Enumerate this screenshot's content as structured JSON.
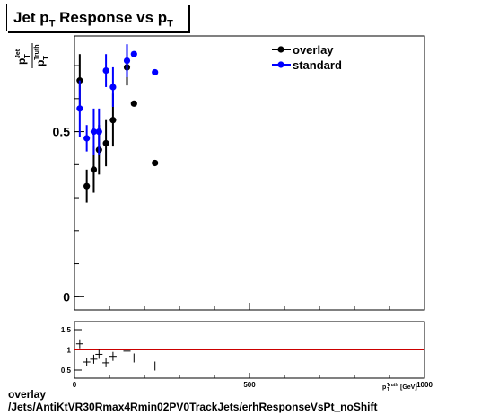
{
  "title": {
    "main": "Jet p",
    "sub1": "T",
    "mid": " Response vs p",
    "sub2": "T"
  },
  "caption": {
    "line1": "overlay",
    "line2": "/Jets/AntiKtVR30Rmax4Rmin02PV0TrackJets/erhResponseVsPt_noShift"
  },
  "colors": {
    "overlay": "#000000",
    "standard": "#0000ff",
    "ratio_line": "#cc0000"
  },
  "chart_data": [
    {
      "type": "scatter",
      "ylabel": {
        "num": "p",
        "num_sub": "T",
        "num_sup": "Jet",
        "den": "p",
        "den_sub": "T",
        "den_sup": "Truth"
      },
      "xlim": [
        0,
        1000
      ],
      "ylim": [
        -0.04,
        0.79
      ],
      "y_ticks": [
        0,
        0.5
      ],
      "y_tick_labels": [
        "0",
        "0.5"
      ],
      "legend": {
        "placement": "top-right",
        "entries": [
          "overlay",
          "standard"
        ]
      },
      "series": [
        {
          "name": "overlay",
          "points": [
            {
              "x": 15,
              "y": 0.655,
              "err": 0.08
            },
            {
              "x": 35,
              "y": 0.335,
              "err": 0.05
            },
            {
              "x": 55,
              "y": 0.385,
              "err": 0.07
            },
            {
              "x": 70,
              "y": 0.445,
              "err": 0.075
            },
            {
              "x": 90,
              "y": 0.465,
              "err": 0.07
            },
            {
              "x": 110,
              "y": 0.535,
              "err": 0.08
            },
            {
              "x": 150,
              "y": 0.695,
              "err": 0.055
            },
            {
              "x": 170,
              "y": 0.585,
              "err": 0.0
            },
            {
              "x": 230,
              "y": 0.405,
              "err": 0.0
            }
          ]
        },
        {
          "name": "standard",
          "points": [
            {
              "x": 15,
              "y": 0.57,
              "err": 0.085
            },
            {
              "x": 35,
              "y": 0.48,
              "err": 0.04
            },
            {
              "x": 55,
              "y": 0.5,
              "err": 0.07
            },
            {
              "x": 70,
              "y": 0.5,
              "err": 0.07
            },
            {
              "x": 90,
              "y": 0.685,
              "err": 0.05
            },
            {
              "x": 110,
              "y": 0.635,
              "err": 0.06
            },
            {
              "x": 150,
              "y": 0.715,
              "err": 0.05
            },
            {
              "x": 170,
              "y": 0.735,
              "err": 0.0
            },
            {
              "x": 230,
              "y": 0.68,
              "err": 0.0
            }
          ]
        }
      ]
    },
    {
      "type": "scatter",
      "xlabel": {
        "pre": "p",
        "sup": "Truth",
        "sub": "T",
        "mid": " ",
        "tail": "[GeV]"
      },
      "xlim": [
        0,
        1000
      ],
      "ylim": [
        0.3,
        1.7
      ],
      "x_ticks": [
        0,
        500,
        1000
      ],
      "x_tick_labels": [
        "0",
        "500",
        "1000"
      ],
      "y_ticks": [
        0.5,
        1,
        1.5
      ],
      "y_tick_labels": [
        "0.5",
        "1",
        "1.5"
      ],
      "reference_line": 1.0,
      "series": [
        {
          "name": "overlay/standard",
          "points": [
            {
              "x": 15,
              "y": 1.15
            },
            {
              "x": 35,
              "y": 0.7
            },
            {
              "x": 55,
              "y": 0.77
            },
            {
              "x": 70,
              "y": 0.89
            },
            {
              "x": 90,
              "y": 0.68
            },
            {
              "x": 110,
              "y": 0.84
            },
            {
              "x": 150,
              "y": 0.97
            },
            {
              "x": 170,
              "y": 0.8
            },
            {
              "x": 230,
              "y": 0.6
            }
          ]
        }
      ]
    }
  ]
}
